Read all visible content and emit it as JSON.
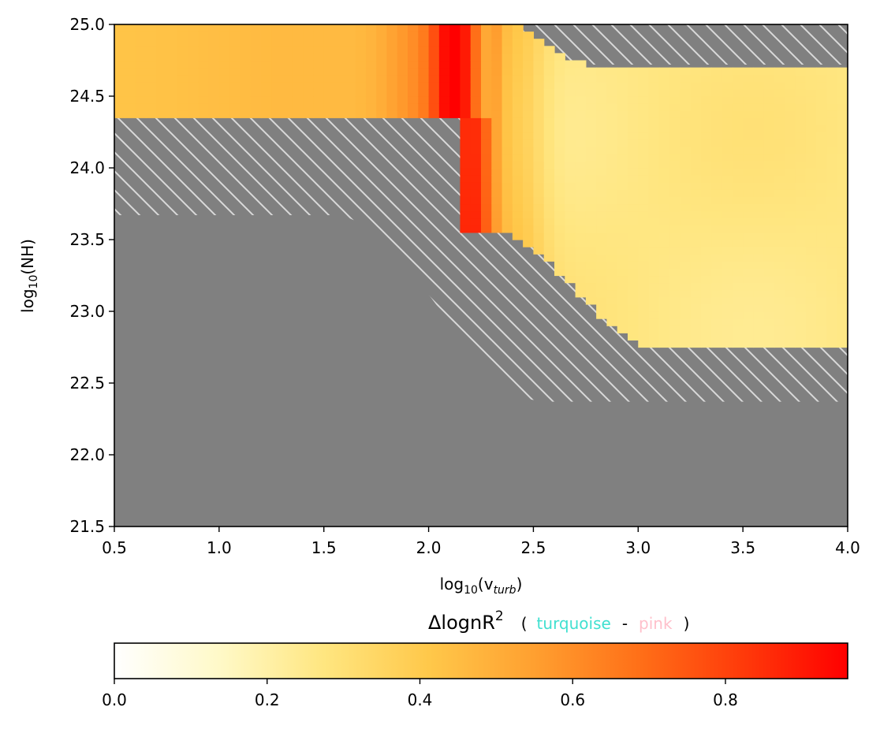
{
  "chart_data": {
    "type": "heatmap",
    "xlabel": {
      "prefix": "log",
      "sub": "10",
      "open": "(v",
      "italic_sub": "turb",
      "close": ")"
    },
    "ylabel": {
      "prefix": "log",
      "sub": "10",
      "rest": "(NH)"
    },
    "xlim": [
      0.5,
      4.0
    ],
    "ylim": [
      21.5,
      25.0
    ],
    "xticks": [
      "0.5",
      "1.0",
      "1.5",
      "2.0",
      "2.5",
      "3.0",
      "3.5",
      "4.0"
    ],
    "yticks": [
      "21.5",
      "22.0",
      "22.5",
      "23.0",
      "23.5",
      "24.0",
      "24.5",
      "25.0"
    ],
    "grid": false,
    "colormap": "autumn_r-like (white → yellow → orange → red)",
    "colors": {
      "masked": "#808080",
      "hatch": "#d9d9d9",
      "cmap_stops": [
        "#ffffff",
        "#fff9c8",
        "#ffe680",
        "#ffc84a",
        "#ffa030",
        "#ff7018",
        "#ff3a0a",
        "#ff0000"
      ],
      "turquoise": "#40e0d0",
      "pink": "#ffc0cb"
    },
    "regions": [
      {
        "name": "upper-band",
        "x": [
          0.5,
          2.32
        ],
        "nh_top": 25.0,
        "nh_bottom_left": 24.37,
        "nh_bottom_right": 24.37,
        "value": 0.45
      },
      {
        "name": "main-region",
        "x": [
          2.32,
          4.0
        ],
        "nh_top_start": 25.0,
        "nh_top_end": 24.72,
        "nh_bottom_start": 23.55,
        "nh_bottom_end": 22.73,
        "value": 0.27
      }
    ],
    "hatched_regions": [
      {
        "name": "diagonal-transition",
        "x": [
          0.5,
          4.0
        ],
        "nh_lower_left": 23.67,
        "nh_lower_right": 22.37,
        "pattern": "diagonal"
      },
      {
        "name": "top-right-corner",
        "x": [
          2.4,
          4.0
        ],
        "nh_range": [
          24.72,
          25.0
        ],
        "pattern": "diagonal"
      }
    ],
    "colorbar": {
      "title": {
        "delta": "Δ",
        "main": "lognR",
        "sup": "2",
        "open": "(",
        "turquoise": "turquoise",
        "dash": "-",
        "pink": "pink",
        "close": ")"
      },
      "range": [
        0.0,
        0.96
      ],
      "ticks": [
        "0.0",
        "0.2",
        "0.4",
        "0.6",
        "0.8"
      ],
      "tick_values": [
        0.0,
        0.2,
        0.4,
        0.6,
        0.8
      ]
    }
  }
}
